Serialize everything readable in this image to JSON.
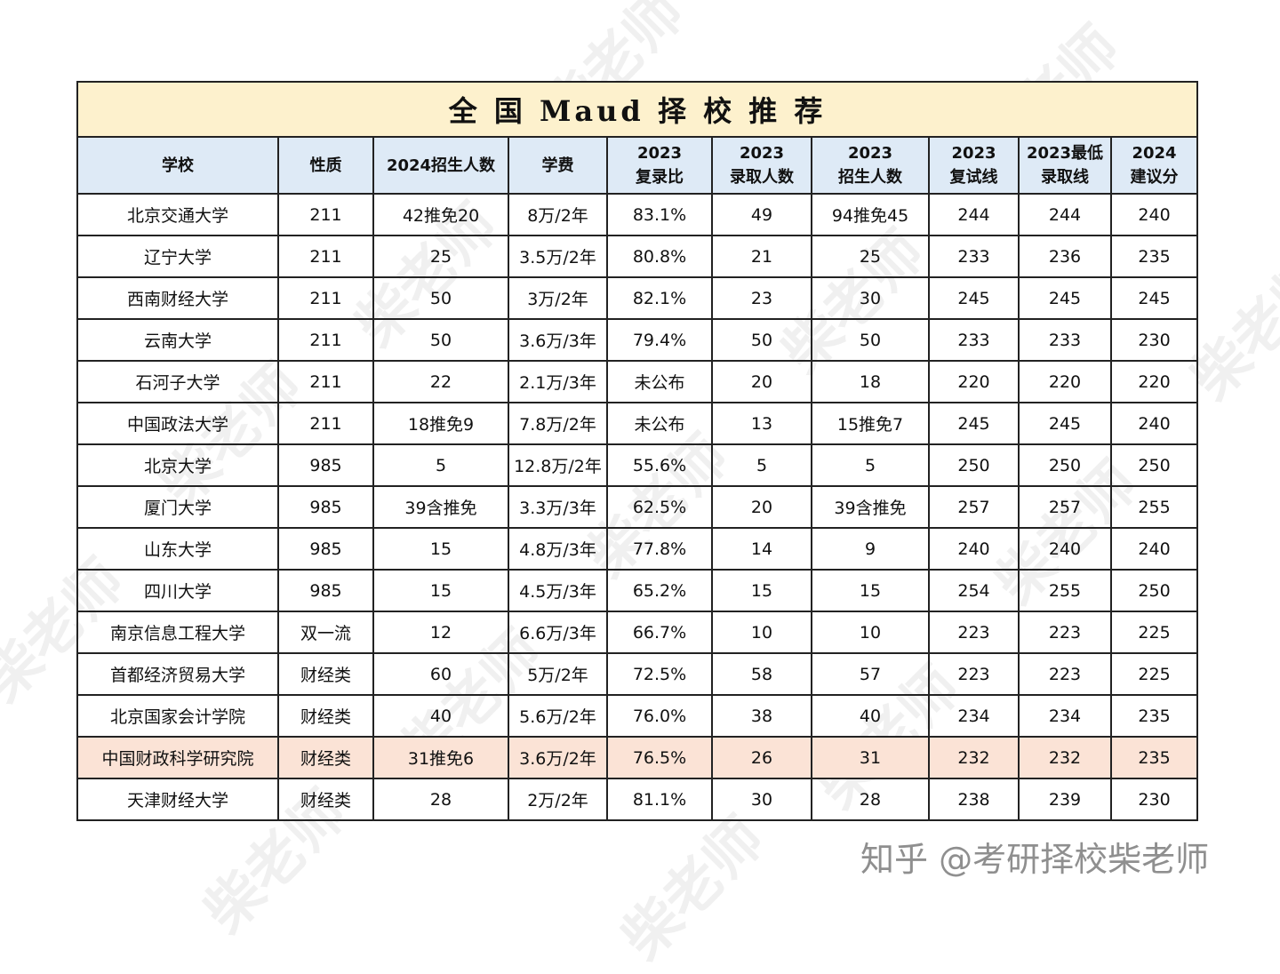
{
  "title": "全 国 Maud 择 校 推 荐",
  "headers": [
    [
      "学校"
    ],
    [
      "性质"
    ],
    [
      "2024招生人数"
    ],
    [
      "学费"
    ],
    [
      "2023",
      "复录比"
    ],
    [
      "2023",
      "录取人数"
    ],
    [
      "2023",
      "招生人数"
    ],
    [
      "2023",
      "复试线"
    ],
    [
      "2023最低",
      "录取线"
    ],
    [
      "2024",
      "建议分"
    ]
  ],
  "rows": [
    [
      "北京交通大学",
      "211",
      "42推免20",
      "8万/2年",
      "83.1%",
      "49",
      "94推免45",
      "244",
      "244",
      "240"
    ],
    [
      "辽宁大学",
      "211",
      "25",
      "3.5万/2年",
      "80.8%",
      "21",
      "25",
      "233",
      "236",
      "235"
    ],
    [
      "西南财经大学",
      "211",
      "50",
      "3万/2年",
      "82.1%",
      "23",
      "30",
      "245",
      "245",
      "245"
    ],
    [
      "云南大学",
      "211",
      "50",
      "3.6万/3年",
      "79.4%",
      "50",
      "50",
      "233",
      "233",
      "230"
    ],
    [
      "石河子大学",
      "211",
      "22",
      "2.1万/3年",
      "未公布",
      "20",
      "18",
      "220",
      "220",
      "220"
    ],
    [
      "中国政法大学",
      "211",
      "18推免9",
      "7.8万/2年",
      "未公布",
      "13",
      "15推免7",
      "245",
      "245",
      "240"
    ],
    [
      "北京大学",
      "985",
      "5",
      "12.8万/2年",
      "55.6%",
      "5",
      "5",
      "250",
      "250",
      "250"
    ],
    [
      "厦门大学",
      "985",
      "39含推免",
      "3.3万/3年",
      "62.5%",
      "20",
      "39含推免",
      "257",
      "257",
      "255"
    ],
    [
      "山东大学",
      "985",
      "15",
      "4.8万/3年",
      "77.8%",
      "14",
      "9",
      "240",
      "240",
      "240"
    ],
    [
      "四川大学",
      "985",
      "15",
      "4.5万/3年",
      "65.2%",
      "15",
      "15",
      "254",
      "255",
      "250"
    ],
    [
      "南京信息工程大学",
      "双一流",
      "12",
      "6.6万/3年",
      "66.7%",
      "10",
      "10",
      "223",
      "223",
      "225"
    ],
    [
      "首都经济贸易大学",
      "财经类",
      "60",
      "5万/2年",
      "72.5%",
      "58",
      "57",
      "223",
      "223",
      "225"
    ],
    [
      "北京国家会计学院",
      "财经类",
      "40",
      "5.6万/2年",
      "76.0%",
      "38",
      "40",
      "234",
      "234",
      "235"
    ],
    [
      "中国财政科学研究院",
      "财经类",
      "31推免6",
      "3.6万/2年",
      "76.5%",
      "26",
      "31",
      "232",
      "232",
      "235"
    ],
    [
      "天津财经大学",
      "财经类",
      "28",
      "2万/2年",
      "81.1%",
      "30",
      "28",
      "238",
      "239",
      "230"
    ]
  ],
  "highlight_row_index": 13,
  "colors": {
    "title_bg": "#fdf1cd",
    "header_bg": "#deeaf6",
    "highlight_bg": "#fbe3d6",
    "border": "#222222"
  },
  "watermark": "柴老师",
  "brand": "知乎 @考研择校柴老师"
}
